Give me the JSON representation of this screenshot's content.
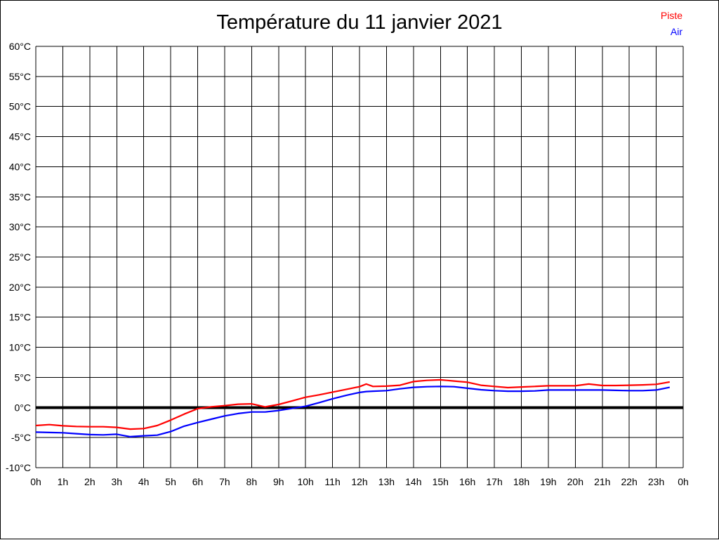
{
  "header": {
    "title": "Température du 11 janvier 2021"
  },
  "legend": {
    "items": [
      {
        "label": "Piste",
        "color": "#ff0000"
      },
      {
        "label": "Air",
        "color": "#0000ff"
      }
    ],
    "position": "top-right"
  },
  "chart_data": {
    "type": "line",
    "title": "Température du 11 janvier 2021",
    "xlabel": "",
    "ylabel": "",
    "xlim": [
      0,
      24
    ],
    "ylim": [
      -10,
      60
    ],
    "grid": true,
    "grid_color": "#000000",
    "zero_line": {
      "value": 0,
      "thick": true,
      "color": "#000000"
    },
    "x_tick_hours": [
      0,
      1,
      2,
      3,
      4,
      5,
      6,
      7,
      8,
      9,
      10,
      11,
      12,
      13,
      14,
      15,
      16,
      17,
      18,
      19,
      20,
      21,
      22,
      23,
      24
    ],
    "x_tick_labels": [
      "0h",
      "1h",
      "2h",
      "3h",
      "4h",
      "5h",
      "6h",
      "7h",
      "8h",
      "9h",
      "10h",
      "11h",
      "12h",
      "13h",
      "14h",
      "15h",
      "16h",
      "17h",
      "18h",
      "19h",
      "20h",
      "21h",
      "22h",
      "23h",
      "0h"
    ],
    "y_tick_values": [
      60,
      55,
      50,
      45,
      40,
      35,
      30,
      25,
      20,
      15,
      10,
      5,
      0,
      -5,
      -10
    ],
    "y_tick_labels": [
      "60°C",
      "55°C",
      "50°C",
      "45°C",
      "40°C",
      "35°C",
      "30°C",
      "25°C",
      "20°C",
      "15°C",
      "10°C",
      "5°C",
      "0°C",
      "-5°C",
      "-10°C"
    ],
    "x": [
      0,
      0.5,
      1,
      1.5,
      2,
      2.5,
      3,
      3.5,
      4,
      4.5,
      5,
      5.5,
      6,
      6.5,
      7,
      7.5,
      8,
      8.5,
      9,
      9.5,
      10,
      10.5,
      11,
      11.5,
      12,
      12.25,
      12.5,
      13,
      13.5,
      14,
      14.5,
      15,
      15.5,
      16,
      16.5,
      17,
      17.5,
      18,
      18.5,
      19,
      19.5,
      20,
      20.5,
      21,
      21.5,
      22,
      22.5,
      23,
      23.5
    ],
    "series": [
      {
        "name": "Piste",
        "color": "#ff0000",
        "values": [
          -3.0,
          -2.85,
          -3.05,
          -3.15,
          -3.2,
          -3.2,
          -3.3,
          -3.6,
          -3.5,
          -3.0,
          -2.1,
          -1.1,
          -0.2,
          0.1,
          0.3,
          0.55,
          0.6,
          0.1,
          0.5,
          1.1,
          1.7,
          2.1,
          2.55,
          3.0,
          3.45,
          3.9,
          3.5,
          3.55,
          3.7,
          4.3,
          4.5,
          4.6,
          4.4,
          4.2,
          3.7,
          3.5,
          3.3,
          3.4,
          3.5,
          3.6,
          3.6,
          3.6,
          3.9,
          3.65,
          3.65,
          3.7,
          3.75,
          3.85,
          4.25
        ]
      },
      {
        "name": "Air",
        "color": "#0000ff",
        "values": [
          -4.1,
          -4.15,
          -4.2,
          -4.35,
          -4.5,
          -4.55,
          -4.45,
          -4.85,
          -4.7,
          -4.6,
          -4.0,
          -3.1,
          -2.5,
          -1.95,
          -1.4,
          -1.0,
          -0.75,
          -0.75,
          -0.5,
          -0.15,
          0.2,
          0.8,
          1.45,
          2.0,
          2.5,
          2.65,
          2.7,
          2.8,
          3.1,
          3.35,
          3.45,
          3.5,
          3.45,
          3.2,
          2.95,
          2.8,
          2.7,
          2.7,
          2.75,
          2.9,
          2.9,
          2.9,
          2.9,
          2.9,
          2.85,
          2.8,
          2.8,
          2.9,
          3.35
        ]
      }
    ],
    "legend_position": "top-right"
  }
}
